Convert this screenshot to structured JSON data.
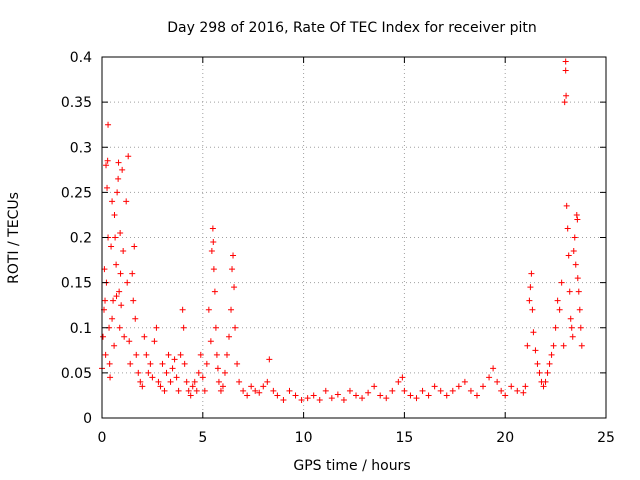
{
  "chart_data": {
    "type": "scatter",
    "title": "Day 298 of 2016, Rate Of TEC Index for receiver pitn",
    "xlabel": "GPS time / hours",
    "ylabel": "ROTI / TECUs",
    "xlim": [
      0,
      25
    ],
    "ylim": [
      0,
      0.4
    ],
    "xticks": [
      0,
      5,
      10,
      15,
      20,
      25
    ],
    "xtick_labels": [
      "0",
      "5",
      "10",
      "15",
      "20",
      "25"
    ],
    "yticks": [
      0,
      0.05,
      0.1,
      0.15,
      0.2,
      0.25,
      0.3,
      0.35,
      0.4
    ],
    "ytick_labels": [
      "0",
      "0.05",
      "0.1",
      "0.15",
      "0.2",
      "0.25",
      "0.3",
      "0.35",
      "0.4"
    ],
    "grid": true,
    "marker": "+",
    "color": "#ff0000",
    "series": [
      {
        "name": "ROTI",
        "points": [
          [
            0.0,
            0.055
          ],
          [
            0.05,
            0.09
          ],
          [
            0.1,
            0.12
          ],
          [
            0.12,
            0.165
          ],
          [
            0.15,
            0.13
          ],
          [
            0.18,
            0.07
          ],
          [
            0.2,
            0.28
          ],
          [
            0.22,
            0.15
          ],
          [
            0.25,
            0.255
          ],
          [
            0.28,
            0.285
          ],
          [
            0.3,
            0.325
          ],
          [
            0.3,
            0.2
          ],
          [
            0.35,
            0.1
          ],
          [
            0.38,
            0.06
          ],
          [
            0.4,
            0.045
          ],
          [
            0.45,
            0.19
          ],
          [
            0.5,
            0.24
          ],
          [
            0.5,
            0.11
          ],
          [
            0.55,
            0.13
          ],
          [
            0.6,
            0.08
          ],
          [
            0.62,
            0.225
          ],
          [
            0.65,
            0.2
          ],
          [
            0.7,
            0.17
          ],
          [
            0.72,
            0.135
          ],
          [
            0.75,
            0.25
          ],
          [
            0.8,
            0.265
          ],
          [
            0.82,
            0.283
          ],
          [
            0.85,
            0.14
          ],
          [
            0.88,
            0.1
          ],
          [
            0.9,
            0.205
          ],
          [
            0.92,
            0.16
          ],
          [
            0.95,
            0.125
          ],
          [
            1.0,
            0.275
          ],
          [
            1.05,
            0.185
          ],
          [
            1.1,
            0.09
          ],
          [
            1.2,
            0.24
          ],
          [
            1.25,
            0.15
          ],
          [
            1.3,
            0.29
          ],
          [
            1.35,
            0.085
          ],
          [
            1.4,
            0.06
          ],
          [
            1.5,
            0.16
          ],
          [
            1.55,
            0.13
          ],
          [
            1.6,
            0.19
          ],
          [
            1.65,
            0.11
          ],
          [
            1.7,
            0.07
          ],
          [
            1.8,
            0.05
          ],
          [
            1.9,
            0.04
          ],
          [
            2.0,
            0.035
          ],
          [
            2.1,
            0.09
          ],
          [
            2.2,
            0.07
          ],
          [
            2.3,
            0.05
          ],
          [
            2.4,
            0.06
          ],
          [
            2.5,
            0.045
          ],
          [
            2.6,
            0.085
          ],
          [
            2.7,
            0.1
          ],
          [
            2.8,
            0.04
          ],
          [
            2.9,
            0.035
          ],
          [
            3.0,
            0.06
          ],
          [
            3.1,
            0.03
          ],
          [
            3.2,
            0.05
          ],
          [
            3.3,
            0.07
          ],
          [
            3.4,
            0.04
          ],
          [
            3.5,
            0.055
          ],
          [
            3.6,
            0.065
          ],
          [
            3.7,
            0.045
          ],
          [
            3.8,
            0.03
          ],
          [
            3.9,
            0.07
          ],
          [
            4.0,
            0.12
          ],
          [
            4.05,
            0.1
          ],
          [
            4.1,
            0.06
          ],
          [
            4.2,
            0.04
          ],
          [
            4.3,
            0.03
          ],
          [
            4.4,
            0.025
          ],
          [
            4.5,
            0.035
          ],
          [
            4.6,
            0.04
          ],
          [
            4.7,
            0.03
          ],
          [
            4.8,
            0.05
          ],
          [
            4.9,
            0.07
          ],
          [
            5.0,
            0.045
          ],
          [
            5.1,
            0.03
          ],
          [
            5.2,
            0.06
          ],
          [
            5.3,
            0.12
          ],
          [
            5.4,
            0.085
          ],
          [
            5.45,
            0.185
          ],
          [
            5.5,
            0.21
          ],
          [
            5.52,
            0.195
          ],
          [
            5.55,
            0.165
          ],
          [
            5.6,
            0.14
          ],
          [
            5.65,
            0.1
          ],
          [
            5.7,
            0.07
          ],
          [
            5.75,
            0.055
          ],
          [
            5.8,
            0.04
          ],
          [
            5.9,
            0.03
          ],
          [
            6.0,
            0.035
          ],
          [
            6.1,
            0.05
          ],
          [
            6.2,
            0.07
          ],
          [
            6.3,
            0.09
          ],
          [
            6.4,
            0.12
          ],
          [
            6.45,
            0.165
          ],
          [
            6.5,
            0.18
          ],
          [
            6.55,
            0.145
          ],
          [
            6.6,
            0.1
          ],
          [
            6.7,
            0.06
          ],
          [
            6.8,
            0.04
          ],
          [
            7.0,
            0.03
          ],
          [
            7.2,
            0.025
          ],
          [
            7.4,
            0.035
          ],
          [
            7.6,
            0.03
          ],
          [
            7.8,
            0.028
          ],
          [
            8.0,
            0.035
          ],
          [
            8.2,
            0.04
          ],
          [
            8.3,
            0.065
          ],
          [
            8.5,
            0.03
          ],
          [
            8.7,
            0.025
          ],
          [
            9.0,
            0.02
          ],
          [
            9.3,
            0.03
          ],
          [
            9.6,
            0.025
          ],
          [
            9.9,
            0.02
          ],
          [
            10.2,
            0.022
          ],
          [
            10.5,
            0.025
          ],
          [
            10.8,
            0.02
          ],
          [
            11.1,
            0.03
          ],
          [
            11.4,
            0.022
          ],
          [
            11.7,
            0.026
          ],
          [
            12.0,
            0.02
          ],
          [
            12.3,
            0.03
          ],
          [
            12.6,
            0.025
          ],
          [
            12.9,
            0.022
          ],
          [
            13.2,
            0.028
          ],
          [
            13.5,
            0.035
          ],
          [
            13.8,
            0.025
          ],
          [
            14.1,
            0.022
          ],
          [
            14.4,
            0.03
          ],
          [
            14.7,
            0.04
          ],
          [
            14.9,
            0.045
          ],
          [
            15.0,
            0.03
          ],
          [
            15.3,
            0.025
          ],
          [
            15.6,
            0.022
          ],
          [
            15.9,
            0.03
          ],
          [
            16.2,
            0.025
          ],
          [
            16.5,
            0.035
          ],
          [
            16.8,
            0.03
          ],
          [
            17.1,
            0.025
          ],
          [
            17.4,
            0.03
          ],
          [
            17.7,
            0.035
          ],
          [
            18.0,
            0.04
          ],
          [
            18.3,
            0.03
          ],
          [
            18.6,
            0.025
          ],
          [
            18.9,
            0.035
          ],
          [
            19.2,
            0.045
          ],
          [
            19.4,
            0.055
          ],
          [
            19.6,
            0.04
          ],
          [
            19.8,
            0.03
          ],
          [
            20.0,
            0.025
          ],
          [
            20.3,
            0.035
          ],
          [
            20.6,
            0.03
          ],
          [
            20.9,
            0.028
          ],
          [
            21.0,
            0.035
          ],
          [
            21.1,
            0.08
          ],
          [
            21.2,
            0.13
          ],
          [
            21.25,
            0.145
          ],
          [
            21.3,
            0.16
          ],
          [
            21.35,
            0.12
          ],
          [
            21.4,
            0.095
          ],
          [
            21.5,
            0.075
          ],
          [
            21.6,
            0.06
          ],
          [
            21.7,
            0.05
          ],
          [
            21.8,
            0.04
          ],
          [
            21.9,
            0.035
          ],
          [
            22.0,
            0.04
          ],
          [
            22.1,
            0.05
          ],
          [
            22.2,
            0.06
          ],
          [
            22.3,
            0.07
          ],
          [
            22.4,
            0.08
          ],
          [
            22.5,
            0.1
          ],
          [
            22.6,
            0.13
          ],
          [
            22.7,
            0.12
          ],
          [
            22.8,
            0.15
          ],
          [
            22.9,
            0.08
          ],
          [
            22.95,
            0.35
          ],
          [
            23.0,
            0.395
          ],
          [
            23.0,
            0.385
          ],
          [
            23.02,
            0.357
          ],
          [
            23.05,
            0.235
          ],
          [
            23.1,
            0.21
          ],
          [
            23.15,
            0.18
          ],
          [
            23.2,
            0.14
          ],
          [
            23.25,
            0.11
          ],
          [
            23.3,
            0.1
          ],
          [
            23.35,
            0.09
          ],
          [
            23.4,
            0.185
          ],
          [
            23.45,
            0.2
          ],
          [
            23.5,
            0.17
          ],
          [
            23.55,
            0.225
          ],
          [
            23.58,
            0.22
          ],
          [
            23.6,
            0.155
          ],
          [
            23.65,
            0.14
          ],
          [
            23.7,
            0.12
          ],
          [
            23.75,
            0.1
          ],
          [
            23.8,
            0.08
          ]
        ]
      }
    ]
  }
}
